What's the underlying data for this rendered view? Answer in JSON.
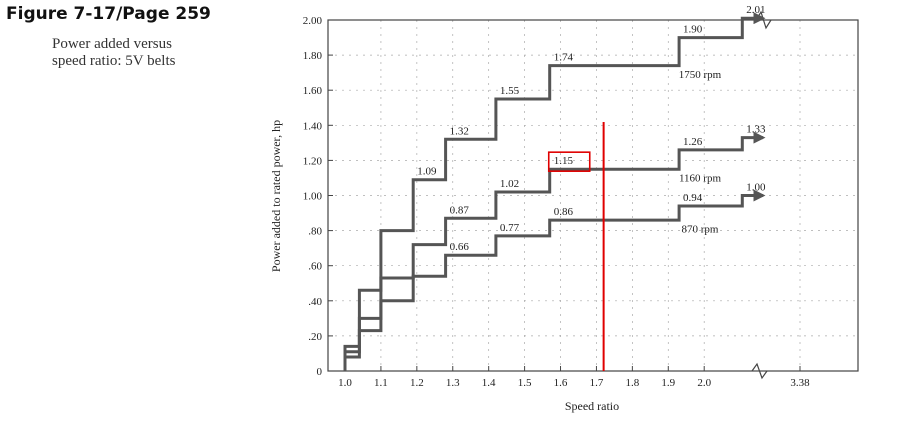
{
  "figure_title": "Figure 7-17/Page 259",
  "caption_line1": "Power added versus",
  "caption_line2": "speed ratio: 5V belts",
  "colors": {
    "series": "#555555",
    "annotation": "#e00000",
    "grid": "#aaaaaa"
  },
  "chart_data": {
    "type": "line",
    "xlabel": "Speed ratio",
    "ylabel": "Power added to rated power, hp",
    "x_ticks": [
      "1.0",
      "1.1",
      "1.2",
      "1.3",
      "1.4",
      "1.5",
      "1.6",
      "1.7",
      "1.8",
      "1.9",
      "2.0",
      "3.38"
    ],
    "y_ticks": [
      "0",
      ".20",
      ".40",
      ".60",
      ".80",
      "1.00",
      "1.20",
      "1.40",
      "1.60",
      "1.80",
      "2.00"
    ],
    "ylim": [
      0,
      2.0
    ],
    "x_break_between": [
      "2.0",
      "3.38"
    ],
    "grid": true,
    "series": [
      {
        "name": "1750 rpm",
        "points": [
          [
            1.0,
            0.0
          ],
          [
            1.0,
            0.14
          ],
          [
            1.04,
            0.14
          ],
          [
            1.04,
            0.46
          ],
          [
            1.1,
            0.46
          ],
          [
            1.1,
            0.8
          ],
          [
            1.19,
            0.8
          ],
          [
            1.19,
            1.09
          ],
          [
            1.28,
            1.09
          ],
          [
            1.28,
            1.32
          ],
          [
            1.42,
            1.32
          ],
          [
            1.42,
            1.55
          ],
          [
            1.57,
            1.55
          ],
          [
            1.57,
            1.74
          ],
          [
            1.93,
            1.74
          ],
          [
            1.93,
            1.9
          ],
          [
            2.55,
            1.9
          ],
          [
            2.55,
            2.01
          ],
          [
            2.85,
            2.01
          ]
        ],
        "value_labels": [
          "1.09",
          "1.32",
          "1.55",
          "1.74",
          "1.90",
          "2.01"
        ]
      },
      {
        "name": "1160 rpm",
        "points": [
          [
            1.0,
            0.0
          ],
          [
            1.0,
            0.11
          ],
          [
            1.04,
            0.11
          ],
          [
            1.04,
            0.3
          ],
          [
            1.1,
            0.3
          ],
          [
            1.1,
            0.53
          ],
          [
            1.19,
            0.53
          ],
          [
            1.19,
            0.72
          ],
          [
            1.28,
            0.72
          ],
          [
            1.28,
            0.87
          ],
          [
            1.42,
            0.87
          ],
          [
            1.42,
            1.02
          ],
          [
            1.57,
            1.02
          ],
          [
            1.57,
            1.15
          ],
          [
            1.93,
            1.15
          ],
          [
            1.93,
            1.26
          ],
          [
            2.55,
            1.26
          ],
          [
            2.55,
            1.33
          ],
          [
            2.85,
            1.33
          ]
        ],
        "value_labels": [
          "0.87",
          "1.02",
          "1.15",
          "1.26",
          "1.33"
        ]
      },
      {
        "name": "870 rpm",
        "points": [
          [
            1.0,
            0.0
          ],
          [
            1.0,
            0.08
          ],
          [
            1.04,
            0.08
          ],
          [
            1.04,
            0.23
          ],
          [
            1.1,
            0.23
          ],
          [
            1.1,
            0.4
          ],
          [
            1.19,
            0.4
          ],
          [
            1.19,
            0.54
          ],
          [
            1.28,
            0.54
          ],
          [
            1.28,
            0.66
          ],
          [
            1.42,
            0.66
          ],
          [
            1.42,
            0.77
          ],
          [
            1.57,
            0.77
          ],
          [
            1.57,
            0.86
          ],
          [
            1.93,
            0.86
          ],
          [
            1.93,
            0.94
          ],
          [
            2.55,
            0.94
          ],
          [
            2.55,
            1.0
          ],
          [
            2.85,
            1.0
          ]
        ],
        "value_labels": [
          "0.66",
          "0.77",
          "0.86",
          "0.94",
          "1.00"
        ]
      }
    ],
    "annotations": [
      {
        "type": "vertical_line",
        "x": 1.72,
        "color": "#e00000"
      },
      {
        "type": "box",
        "target": "1.15",
        "color": "#e00000"
      }
    ]
  }
}
